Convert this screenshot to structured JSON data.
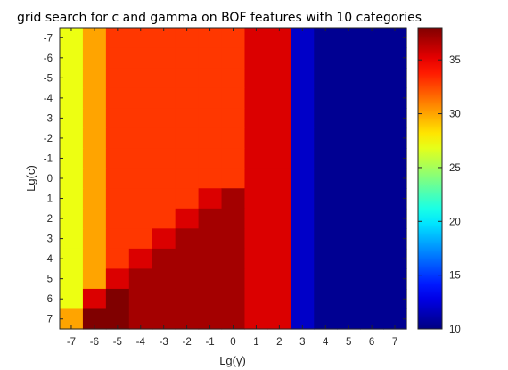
{
  "chart_data": {
    "type": "heatmap",
    "title": "grid search for c and gamma on BOF features with 10 categories",
    "xlabel": "Lg(γ)",
    "ylabel": "Lg(c)",
    "x": [
      "-7",
      "-6",
      "-5",
      "-4",
      "-3",
      "-2",
      "-1",
      "0",
      "1",
      "2",
      "3",
      "4",
      "5",
      "6",
      "7"
    ],
    "y": [
      "-7",
      "-6",
      "-5",
      "-4",
      "-3",
      "-2",
      "-1",
      "0",
      "1",
      "2",
      "3",
      "4",
      "5",
      "6",
      "7"
    ],
    "values": [
      [
        27,
        30,
        33,
        33,
        33,
        33,
        33,
        33,
        35.5,
        35.5,
        12,
        10.5,
        10.5,
        10.5,
        10.5
      ],
      [
        27,
        30,
        33,
        33,
        33,
        33,
        33,
        33,
        35.5,
        35.5,
        12,
        10.5,
        10.5,
        10.5,
        10.5
      ],
      [
        27,
        30,
        33,
        33,
        33,
        33,
        33,
        33,
        35.5,
        35.5,
        12,
        10.5,
        10.5,
        10.5,
        10.5
      ],
      [
        27,
        30,
        33,
        33,
        33,
        33,
        33,
        33,
        35.5,
        35.5,
        12,
        10.5,
        10.5,
        10.5,
        10.5
      ],
      [
        27,
        30,
        33,
        33,
        33,
        33,
        33,
        33,
        35.5,
        35.5,
        12,
        10.5,
        10.5,
        10.5,
        10.5
      ],
      [
        27,
        30,
        33,
        33,
        33,
        33,
        33,
        33,
        35.5,
        35.5,
        12,
        10.5,
        10.5,
        10.5,
        10.5
      ],
      [
        27,
        30,
        33,
        33,
        33,
        33,
        33,
        33,
        35.5,
        35.5,
        12,
        10.5,
        10.5,
        10.5,
        10.5
      ],
      [
        27,
        30,
        33,
        33,
        33,
        33,
        33,
        33,
        35.5,
        35.5,
        12,
        10.5,
        10.5,
        10.5,
        10.5
      ],
      [
        27,
        30,
        33,
        33,
        33,
        33,
        35.5,
        37,
        35.5,
        35.5,
        12,
        10.5,
        10.5,
        10.5,
        10.5
      ],
      [
        27,
        30,
        33,
        33,
        33,
        35.5,
        37,
        37,
        35.5,
        35.5,
        12,
        10.5,
        10.5,
        10.5,
        10.5
      ],
      [
        27,
        30,
        33,
        33,
        35.5,
        37,
        37,
        37,
        35.5,
        35.5,
        12,
        10.5,
        10.5,
        10.5,
        10.5
      ],
      [
        27,
        30,
        33,
        35.5,
        37,
        37,
        37,
        37,
        35.5,
        35.5,
        12,
        10.5,
        10.5,
        10.5,
        10.5
      ],
      [
        27,
        30,
        35.5,
        37,
        37,
        37,
        37,
        37,
        35.5,
        35.5,
        12,
        10.5,
        10.5,
        10.5,
        10.5
      ],
      [
        27,
        35.5,
        38,
        37,
        37,
        37,
        37,
        37,
        35.5,
        35.5,
        12,
        10.5,
        10.5,
        10.5,
        10.5
      ],
      [
        30,
        38,
        38,
        37,
        37,
        37,
        37,
        37,
        35.5,
        35.5,
        12,
        10.5,
        10.5,
        10.5,
        10.5
      ]
    ],
    "x_tick_labels": [
      "-7",
      "-6",
      "-5",
      "-4",
      "-3",
      "-2",
      "-1",
      "0",
      "1",
      "2",
      "3",
      "4",
      "5",
      "6",
      "7"
    ],
    "y_tick_labels": [
      "-7",
      "-6",
      "-5",
      "-4",
      "-3",
      "-2",
      "-1",
      "0",
      "1",
      "2",
      "3",
      "4",
      "5",
      "6",
      "7"
    ],
    "colorbar": {
      "colormap": "jet",
      "range": [
        10,
        38
      ],
      "ticks": [
        10,
        15,
        20,
        25,
        30,
        35
      ],
      "tick_labels": [
        "10",
        "15",
        "20",
        "25",
        "30",
        "35"
      ]
    },
    "y_axis_direction": "top-to-bottom",
    "grid": false
  }
}
